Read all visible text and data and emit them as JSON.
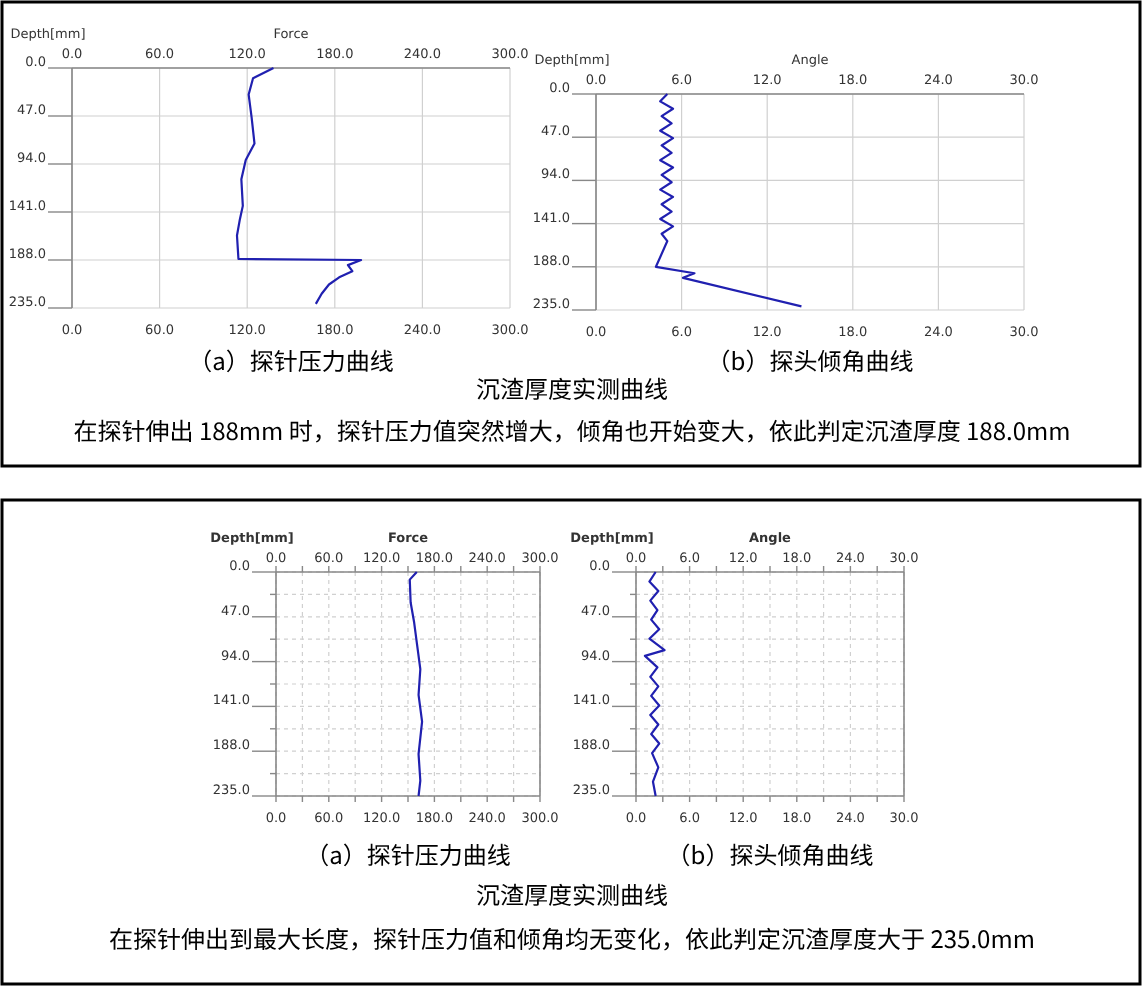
{
  "chart_data": [
    {
      "type": "line",
      "x2label": "Force",
      "ylabel": "Depth[mm]",
      "xlim": [
        0,
        300
      ],
      "xticks": [
        {
          "value": 0,
          "label": "0.0"
        },
        {
          "value": 60,
          "label": "60.0"
        },
        {
          "value": 120,
          "label": "120.0"
        },
        {
          "value": 180,
          "label": "180.0"
        },
        {
          "value": 240,
          "label": "240.0"
        },
        {
          "value": 300,
          "label": "300.0"
        }
      ],
      "x2lim": [
        0,
        300
      ],
      "x2ticks": [
        {
          "value": 0,
          "label": "0.0"
        },
        {
          "value": 60,
          "label": "60.0"
        },
        {
          "value": 120,
          "label": "120.0"
        },
        {
          "value": 180,
          "label": "180.0"
        },
        {
          "value": 240,
          "label": "240.0"
        },
        {
          "value": 300,
          "label": "300.0"
        }
      ],
      "ylim": [
        235,
        0
      ],
      "yticks": [
        {
          "value": 0,
          "label": "0.0"
        },
        {
          "value": 47,
          "label": "47.0"
        },
        {
          "value": 94,
          "label": "94.0"
        },
        {
          "value": 141,
          "label": "141.0"
        },
        {
          "value": 188,
          "label": "188.0"
        },
        {
          "value": 235,
          "label": "235.0"
        }
      ],
      "grid": true,
      "annotations": [
        "（a）探针压力曲线"
      ],
      "series": [
        {
          "color": "#2020b0",
          "x": [
            138,
            124,
            121,
            123,
            125,
            119,
            116,
            117,
            115,
            113,
            114,
            198,
            189,
            192,
            183,
            176,
            171,
            167
          ],
          "values": [
            0,
            10,
            26,
            48,
            74,
            90,
            109,
            135,
            148,
            164,
            187,
            188,
            193,
            199,
            205,
            212,
            221,
            231
          ]
        }
      ]
    },
    {
      "type": "line",
      "x2label": "Angle",
      "ylabel": "Depth[mm]",
      "xlim": [
        0,
        30
      ],
      "xticks": [
        {
          "value": 0,
          "label": "0.0"
        },
        {
          "value": 6,
          "label": "6.0"
        },
        {
          "value": 12,
          "label": "12.0"
        },
        {
          "value": 18,
          "label": "18.0"
        },
        {
          "value": 24,
          "label": "24.0"
        },
        {
          "value": 30,
          "label": "30.0"
        }
      ],
      "x2lim": [
        0,
        30
      ],
      "x2ticks": [
        {
          "value": 0,
          "label": "0.0"
        },
        {
          "value": 6,
          "label": "6.0"
        },
        {
          "value": 12,
          "label": "12.0"
        },
        {
          "value": 18,
          "label": "18.0"
        },
        {
          "value": 24,
          "label": "24.0"
        },
        {
          "value": 30,
          "label": "30.0"
        }
      ],
      "ylim": [
        235,
        0
      ],
      "yticks": [
        {
          "value": 0,
          "label": "0.0"
        },
        {
          "value": 47,
          "label": "47.0"
        },
        {
          "value": 94,
          "label": "94.0"
        },
        {
          "value": 141,
          "label": "141.0"
        },
        {
          "value": 188,
          "label": "188.0"
        },
        {
          "value": 235,
          "label": "235.0"
        }
      ],
      "grid": true,
      "annotations": [
        "（b）探头倾角曲线",
        "沉渣厚度实测曲线",
        "在探针伸出 188mm 时，探针压力值突然增大，倾角也开始变大，依此判定沉渣厚度 188.0mm"
      ],
      "series": [
        {
          "color": "#2020b0",
          "x": [
            5.0,
            4.5,
            5.4,
            4.6,
            5.3,
            4.5,
            5.4,
            4.6,
            5.3,
            4.5,
            5.4,
            4.6,
            5.3,
            4.5,
            5.4,
            4.6,
            5.3,
            4.5,
            5.4,
            4.6,
            5.0,
            4.2,
            6.9,
            6.1,
            14.4
          ],
          "values": [
            0,
            8,
            16,
            24,
            32,
            40,
            48,
            56,
            64,
            72,
            80,
            88,
            96,
            104,
            112,
            120,
            128,
            136,
            144,
            152,
            160,
            188,
            195,
            200,
            231
          ]
        }
      ]
    },
    {
      "type": "line",
      "x2label": "Force",
      "ylabel": "Depth[mm]",
      "xlim": [
        0,
        300
      ],
      "x2lim": [
        0,
        300
      ],
      "xticks": [
        {
          "value": 0,
          "label": "0.0"
        },
        {
          "value": 30,
          "label": null
        },
        {
          "value": 60,
          "label": "60.0"
        },
        {
          "value": 90,
          "label": null
        },
        {
          "value": 120,
          "label": "120.0"
        },
        {
          "value": 150,
          "label": null
        },
        {
          "value": 180,
          "label": "180.0"
        },
        {
          "value": 210,
          "label": null
        },
        {
          "value": 240,
          "label": "240.0"
        },
        {
          "value": 270,
          "label": null
        },
        {
          "value": 300,
          "label": "300.0"
        }
      ],
      "x2ticks": [
        {
          "value": 0,
          "label": "0.0"
        },
        {
          "value": 30,
          "label": null
        },
        {
          "value": 60,
          "label": "60.0"
        },
        {
          "value": 90,
          "label": null
        },
        {
          "value": 120,
          "label": "120.0"
        },
        {
          "value": 150,
          "label": null
        },
        {
          "value": 180,
          "label": "180.0"
        },
        {
          "value": 210,
          "label": null
        },
        {
          "value": 240,
          "label": "240.0"
        },
        {
          "value": 270,
          "label": null
        },
        {
          "value": 300,
          "label": "300.0"
        }
      ],
      "ylim": [
        235,
        0
      ],
      "yticks": [
        {
          "value": 0,
          "label": "0.0"
        },
        {
          "value": 23.5,
          "label": null
        },
        {
          "value": 47,
          "label": "47.0"
        },
        {
          "value": 70.5,
          "label": null
        },
        {
          "value": 94,
          "label": "94.0"
        },
        {
          "value": 117.5,
          "label": null
        },
        {
          "value": 141,
          "label": "141.0"
        },
        {
          "value": 164.5,
          "label": null
        },
        {
          "value": 188,
          "label": "188.0"
        },
        {
          "value": 211.5,
          "label": null
        },
        {
          "value": 235,
          "label": "235.0"
        }
      ],
      "grid": true,
      "annotations": [
        "（a）探针压力曲线"
      ],
      "series": [
        {
          "color": "#2020b0",
          "x": [
            160,
            152,
            153,
            157,
            160,
            164,
            162,
            166,
            162,
            164,
            162
          ],
          "values": [
            0,
            8,
            32,
            53,
            74,
            102,
            129,
            157,
            191,
            219,
            235
          ]
        }
      ]
    },
    {
      "type": "line",
      "x2label": "Angle",
      "ylabel": "Depth[mm]",
      "xlim": [
        0,
        30
      ],
      "x2lim": [
        0,
        30
      ],
      "xticks": [
        {
          "value": 0,
          "label": "0.0"
        },
        {
          "value": 3,
          "label": null
        },
        {
          "value": 6,
          "label": "6.0"
        },
        {
          "value": 9,
          "label": null
        },
        {
          "value": 12,
          "label": "12.0"
        },
        {
          "value": 15,
          "label": null
        },
        {
          "value": 18,
          "label": "18.0"
        },
        {
          "value": 21,
          "label": null
        },
        {
          "value": 24,
          "label": "24.0"
        },
        {
          "value": 27,
          "label": null
        },
        {
          "value": 30,
          "label": "30.0"
        }
      ],
      "x2ticks": [
        {
          "value": 0,
          "label": "0.0"
        },
        {
          "value": 3,
          "label": null
        },
        {
          "value": 6,
          "label": "6.0"
        },
        {
          "value": 9,
          "label": null
        },
        {
          "value": 12,
          "label": "12.0"
        },
        {
          "value": 15,
          "label": null
        },
        {
          "value": 18,
          "label": "18.0"
        },
        {
          "value": 21,
          "label": null
        },
        {
          "value": 24,
          "label": "24.0"
        },
        {
          "value": 27,
          "label": null
        },
        {
          "value": 30,
          "label": "30.0"
        }
      ],
      "ylim": [
        235,
        0
      ],
      "yticks": [
        {
          "value": 0,
          "label": "0.0"
        },
        {
          "value": 23.5,
          "label": null
        },
        {
          "value": 47,
          "label": "47.0"
        },
        {
          "value": 70.5,
          "label": null
        },
        {
          "value": 94,
          "label": "94.0"
        },
        {
          "value": 117.5,
          "label": null
        },
        {
          "value": 141,
          "label": "141.0"
        },
        {
          "value": 164.5,
          "label": null
        },
        {
          "value": 188,
          "label": "188.0"
        },
        {
          "value": 211.5,
          "label": null
        },
        {
          "value": 235,
          "label": "235.0"
        }
      ],
      "grid": true,
      "annotations": [
        "（b）探头倾角曲线",
        "沉渣厚度实测曲线",
        "在探针伸出到最大长度，探针压力值和倾角均无变化，依此判定沉渣厚度大于 235.0mm"
      ],
      "series": [
        {
          "color": "#2020b0",
          "x": [
            2.2,
            1.5,
            2.5,
            1.6,
            2.4,
            1.7,
            2.6,
            1.5,
            3.2,
            1.0,
            2.4,
            1.6,
            2.5,
            1.7,
            2.6,
            1.6,
            2.5,
            1.7,
            2.6,
            1.8,
            2.5,
            1.9,
            2.2
          ],
          "values": [
            0,
            10,
            20,
            30,
            40,
            50,
            60,
            70,
            82,
            88,
            100,
            110,
            120,
            130,
            140,
            150,
            160,
            170,
            180,
            190,
            205,
            220,
            235
          ]
        }
      ]
    }
  ]
}
